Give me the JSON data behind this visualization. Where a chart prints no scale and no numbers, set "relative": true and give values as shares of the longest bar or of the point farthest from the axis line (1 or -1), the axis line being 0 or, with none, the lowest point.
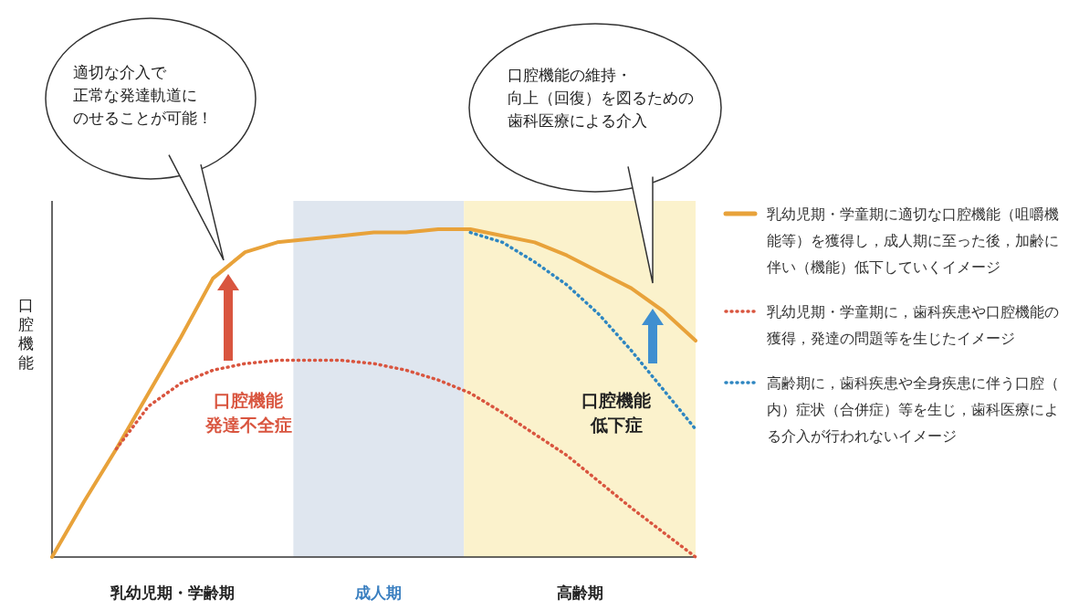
{
  "chart_data": {
    "type": "line",
    "relative": true,
    "ylabel": "口腔機能",
    "grid": false,
    "legend": "right",
    "categories": [
      null,
      null,
      null,
      null,
      null,
      null,
      null,
      null,
      null,
      null,
      null,
      null,
      null,
      null,
      null,
      null,
      null,
      null,
      null,
      null,
      null
    ],
    "series": [
      {
        "name": "乳幼児期・学童期に適切な口腔機能（咀嚼機能等）を獲得し，成人期に至った後，加齢に伴い（機能）低下していくイメージ",
        "color": "#e8a23a",
        "line_style": "solid",
        "values": [
          0,
          0.17,
          0.33,
          0.5,
          0.67,
          0.85,
          0.93,
          0.96,
          0.97,
          0.98,
          0.99,
          0.99,
          1,
          1,
          0.98,
          0.96,
          0.92,
          0.87,
          0.82,
          0.75,
          0.66
        ]
      },
      {
        "name": "乳幼児期・学童期に，歯科疾患や口腔機能の獲得，発達の問題等を生じたイメージ",
        "color": "#d9553f",
        "line_style": "dotted",
        "values": [
          null,
          null,
          0.33,
          0.46,
          0.53,
          0.57,
          0.59,
          0.6,
          0.6,
          0.6,
          0.59,
          0.57,
          0.54,
          0.5,
          0.44,
          0.375,
          0.31,
          0.23,
          0.15,
          0.075,
          0
        ]
      },
      {
        "name": "高齢期に，歯科疾患や全身疾患に伴う口腔（内）症状（合併症）等を生じ，歯科医療による介入が行われないイメージ",
        "color": "#2e86c1",
        "line_style": "dotted",
        "values": [
          null,
          null,
          null,
          null,
          null,
          null,
          null,
          null,
          null,
          null,
          null,
          null,
          null,
          0.99,
          0.96,
          0.9,
          0.83,
          0.74,
          0.63,
          0.51,
          0.39
        ]
      }
    ],
    "annotations": [
      "適切な介入で正常な発達軌道にのせることが可能！",
      "口腔機能の維持・向上（回復）を図るための歯科医療による介入",
      "口腔機能発達不全症",
      "口腔機能低下症",
      "乳幼児期・学齢期",
      "成人期",
      "高齢期"
    ]
  }
}
